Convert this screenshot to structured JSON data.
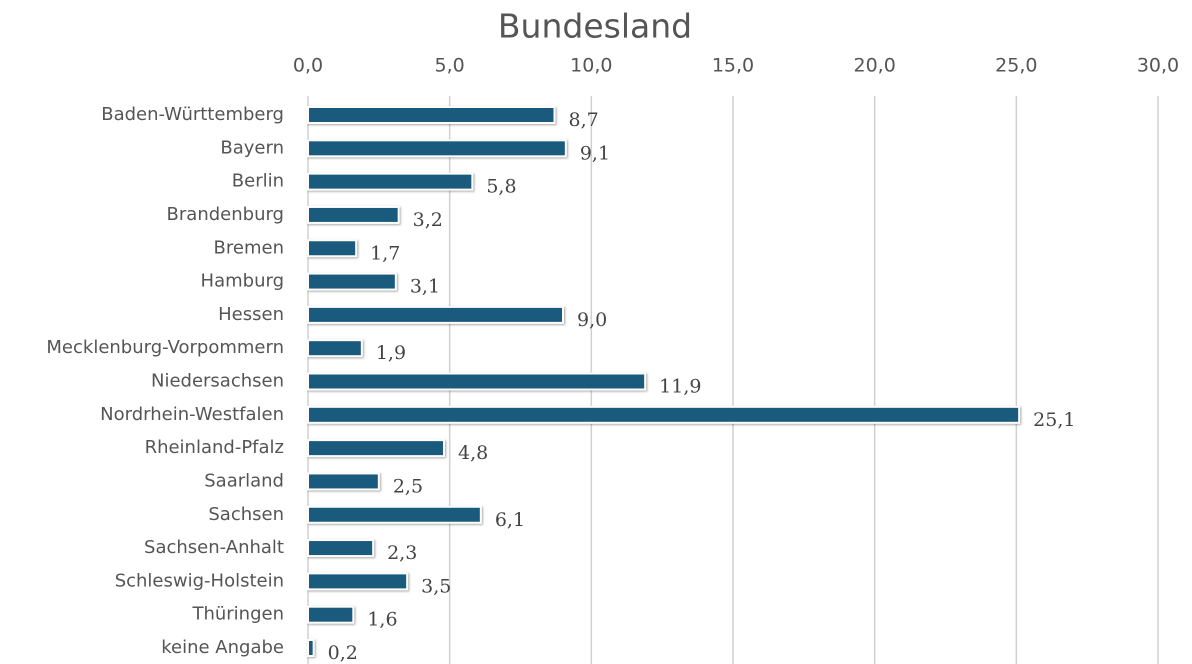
{
  "chart_data": {
    "type": "bar",
    "orientation": "horizontal",
    "title": "Bundesland",
    "categories": [
      "Baden-Württemberg",
      "Bayern",
      "Berlin",
      "Brandenburg",
      "Bremen",
      "Hamburg",
      "Hessen",
      "Mecklenburg-Vorpommern",
      "Niedersachsen",
      "Nordrhein-Westfalen",
      "Rheinland-Pfalz",
      "Saarland",
      "Sachsen",
      "Sachsen-Anhalt",
      "Schleswig-Holstein",
      "Thüringen",
      "keine Angabe"
    ],
    "values": [
      8.7,
      9.1,
      5.8,
      3.2,
      1.7,
      3.1,
      9.0,
      1.9,
      11.9,
      25.1,
      4.8,
      2.5,
      6.1,
      2.3,
      3.5,
      1.6,
      0.2
    ],
    "value_labels": [
      "8,7",
      "9,1",
      "5,8",
      "3,2",
      "1,7",
      "3,1",
      "9,0",
      "1,9",
      "11,9",
      "25,1",
      "4,8",
      "2,5",
      "6,1",
      "2,3",
      "3,5",
      "1,6",
      "0,2"
    ],
    "color": "#1a5b7d",
    "xlim": [
      0,
      30
    ],
    "xticks": [
      {
        "value": 0,
        "label": "0,0"
      },
      {
        "value": 5,
        "label": "5,0"
      },
      {
        "value": 10,
        "label": "10,0"
      },
      {
        "value": 15,
        "label": "15,0"
      },
      {
        "value": 20,
        "label": "20,0"
      },
      {
        "value": 25,
        "label": "25,0"
      },
      {
        "value": 30,
        "label": "30,0"
      }
    ],
    "grid": true
  }
}
